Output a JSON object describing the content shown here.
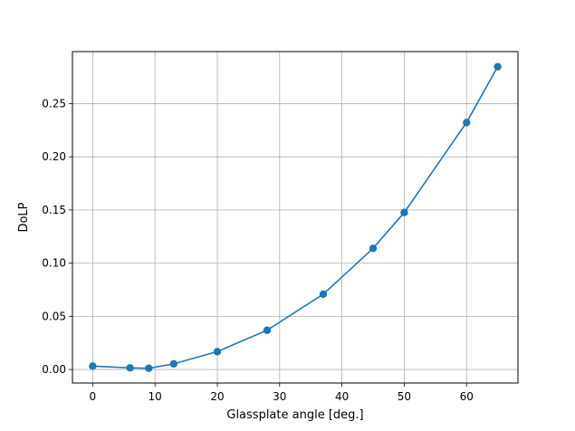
{
  "chart_data": {
    "type": "line",
    "title": "",
    "xlabel": "Glassplate angle [deg.]",
    "ylabel": "DoLP",
    "xlim": [
      -3.25,
      68.25
    ],
    "ylim": [
      -0.0127,
      0.2989
    ],
    "grid": true,
    "legend": "none",
    "x_ticks": [
      0,
      10,
      20,
      30,
      40,
      50,
      60
    ],
    "x_tick_labels": [
      "0",
      "10",
      "20",
      "30",
      "40",
      "50",
      "60"
    ],
    "y_ticks": [
      0.0,
      0.05,
      0.1,
      0.15,
      0.2,
      0.25
    ],
    "y_tick_labels": [
      "0.00",
      "0.05",
      "0.10",
      "0.15",
      "0.20",
      "0.25"
    ],
    "series": [
      {
        "color": "#1f77b4",
        "marker": "circle",
        "x": [
          0,
          6,
          9,
          13,
          20,
          28,
          37,
          45,
          50,
          60,
          65
        ],
        "y": [
          0.0032,
          0.0015,
          0.0012,
          0.0053,
          0.0168,
          0.0369,
          0.0708,
          0.1139,
          0.1476,
          0.2322,
          0.2847
        ]
      }
    ]
  }
}
